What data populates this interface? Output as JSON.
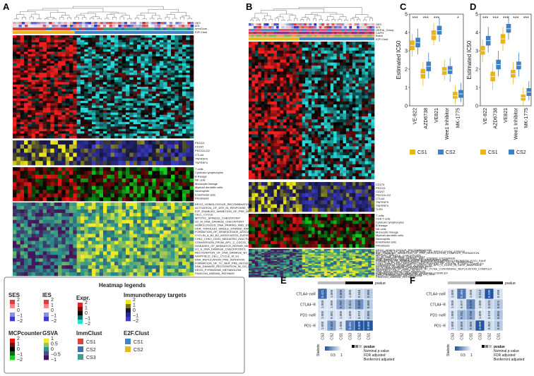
{
  "panels": {
    "A": {
      "label": "A",
      "track_labels": [
        "SES",
        "IES",
        "ImmClust",
        "E2F.Clust"
      ],
      "immune_genes": [
        "PDCD1",
        "CD247",
        "PDCD1LG2",
        "CTLA4",
        "TNFRSF9",
        "TNFRSF4"
      ],
      "mcp_cells": [
        "T cells",
        "Cytotoxic lymphocytes",
        "B lineage",
        "NK cells",
        "Monocytic lineage",
        "Myeloid dendritic cells",
        "Neutrophils",
        "Endothelial cells",
        "Fibroblasts"
      ],
      "pathways": [
        "KEGG_HOMOLOGOUS_RECOMBINATION",
        "ACTIVATION_OF_ATR_IN_RESPONSE_TO_REPLICATION_STRESS",
        "E2F_ENABLED_INHIBITION_OF_PRE_REPLICATION_COMPLEX_FORMATION",
        "CELL_CYCLE",
        "MITOTIC_SPINDLE_CHECKPOINT",
        "G2_M_DNA_DAMAGE_CHECKPOINT",
        "HOMOLOGOUS_DNA_PAIRING_AND_STRAND_EXCHANGE",
        "HDR_THROUGH_SINGLE_STRAND_ANNEALING_SSA",
        "FORMATION_OF_SENESCENCE_ASSOCIATED_HETEROCHROMATIN_FOCI_SAHF",
        "CYCLIN_A_B1_B2_ASSOCIATED_EVENTS_DURING_G2_M_TRANSITION",
        "CHK1_CHK2_CDS1_MEDIATED_INACTIVATION_OF_CYCLIN_B_CDK1_COMPLEX",
        "CONVERSION_FROM_APC_C_CDC20_TO_APC_C_CDH1_IN_LATE_ANAPHASE",
        "DISEASES_OF_MISMATCH_REPAIR_MMR",
        "G1_S_DNA_DAMAGE_CHECKPOINTS",
        "RECOGNITION_OF_DNA_DAMAGE_BY_PCNA_CONTAINING_REPLICATION_COMPLEX",
        "WHITFIELD_CELL_CYCLE_M_G1",
        "DNA_REPLICATION_PRE_INITIATION",
        "FORMATION_OF_TC_NER_PRE_INCISION_COMPLEX",
        "DNA_DAMAGE_RECOGNITION_IN_GG_NER",
        "KEGG_PYRIMIDINE_METABOLISM",
        "FANCONI_ANEMIA_PATHWAY"
      ]
    },
    "B": {
      "label": "B",
      "track_labels": [
        "SES",
        "IES",
        "GEPIA_Group",
        "CAPN",
        "Batch",
        "E2F.Clust"
      ],
      "immune_genes": [
        "CD274",
        "PDCD1",
        "CD247",
        "PDCD1LG2",
        "CTLA4",
        "TNFRSF9",
        "TNFRSF4",
        "TLR9"
      ],
      "mcp_cells": [
        "T cells",
        "CD8 T cells",
        "Cytotoxic lymphocytes",
        "B lineage",
        "NK cells",
        "Monocytic lineage",
        "Myeloid dendritic cells",
        "Neutrophils",
        "Endothelial cells",
        "Fibroblasts"
      ],
      "pathways": [
        "KEGG_HOMOLOGOUS_RECOMBINATION",
        "ACTIVATION_OF_ATR_IN_RESPONSE_TO_REPLICATION_STRESS",
        "E2F_ENABLED_INHIBITION_OF_PRE_REPLICATION_COMPLEX_FORMATION",
        "CELL_CYCLE",
        "MITOTIC_SPINDLE_CHECKPOINT",
        "G2_M_DNA_DAMAGE_CHECKPOINT",
        "HOMOLOGOUS_DNA_PAIRING_AND_STRAND_EXCHANGE",
        "HDR_THROUGH_SINGLE_STRAND_ANNEALING_SSA",
        "FORMATION_OF_SENESCENCE_ASSOCIATED_HETEROCHROMATIN_FOCI_SAHF",
        "CYCLIN_A_B1_B2_ASSOCIATED_EVENTS_DURING_G2_M_TRANSITION",
        "CHK1_CHK2_CDS1_MEDIATED_INACTIVATION_OF_CYCLIN_B_CDK1_COMPLEX",
        "CONVERSION_FROM_APC_C_CDC20_TO_APC_C_CDH1_IN_LATE_ANAPHASE",
        "DISEASES_OF_MISMATCH_REPAIR_MMR",
        "G1_S_DNA_DAMAGE_CHECKPOINTS",
        "RECOGNITION_OF_DNA_DAMAGE_BY_PCNA_CONTAINING_REPLICATION_COMPLEX",
        "WHITFIELD_CELL_CYCLE_M_G1",
        "DNA_REPLICATION_PRE_INITIATION",
        "FORMATION_OF_TC_NER_PRE_INCISION_COMPLEX",
        "DNA_DAMAGE_RECOGNITION_IN_GG_NER",
        "KEGG_PYRIMIDINE_METABOLISM",
        "FANCONI_ANEMIA_PATHWAY"
      ]
    },
    "C": {
      "label": "C"
    },
    "D": {
      "label": "D"
    },
    "E": {
      "label": "E"
    },
    "F": {
      "label": "F"
    }
  },
  "legend": {
    "title": "Heatmap legends",
    "ses": {
      "name": "SES",
      "ticks": [
        "2",
        "1",
        "0",
        "−1",
        "−2"
      ]
    },
    "ies": {
      "name": "IES",
      "ticks": [
        "2",
        "1",
        "0",
        "−1",
        "−2"
      ]
    },
    "expr": {
      "name": "Expr.",
      "ticks": [
        "2",
        "1",
        "0",
        "−1",
        "−2"
      ]
    },
    "immuno": {
      "name": "Immunotherapy targets",
      "ticks": [
        "2",
        "1",
        "0",
        "−1",
        "−2"
      ]
    },
    "mcp": {
      "name": "MCPcounter",
      "ticks": [
        "2",
        "1",
        "0",
        "−1",
        "−2"
      ]
    },
    "gsva": {
      "name": "GSVA",
      "ticks": [
        "1",
        "0.5",
        "0",
        "−0.5",
        "−1"
      ]
    },
    "immclust": {
      "name": "ImmClust",
      "items": [
        "CS1",
        "CS2",
        "CS3"
      ],
      "colors": [
        "#d6443a",
        "#3d6fb6",
        "#3aa38f"
      ]
    },
    "e2fclust": {
      "name": "E2F.Clust",
      "items": [
        "CS1",
        "CS2"
      ],
      "colors": [
        "#3e84c6",
        "#e9b720"
      ]
    }
  },
  "chart_data": [
    {
      "id": "C",
      "type": "box",
      "ylabel": "Estimated IC50",
      "ylim": [
        0,
        5
      ],
      "yticks": [
        "0",
        "1",
        "2",
        "3",
        "4",
        "5"
      ],
      "categories": [
        "VE-822",
        "AZD6738",
        "VE821",
        "Wee1 Inhibitor",
        "MK-1775"
      ],
      "significance": [
        "***",
        "***",
        "***",
        "",
        "*"
      ],
      "series": [
        {
          "name": "CS1",
          "color": "#e8b51f",
          "stats": [
            [
              2.7,
              3.05,
              3.3,
              3.55,
              3.9
            ],
            [
              1.1,
              1.5,
              1.75,
              2.0,
              2.4
            ],
            [
              3.3,
              3.6,
              3.85,
              4.1,
              4.5
            ],
            [
              1.4,
              1.7,
              1.9,
              2.1,
              2.5
            ],
            [
              0.1,
              0.4,
              0.55,
              0.75,
              1.1
            ]
          ]
        },
        {
          "name": "CS2",
          "color": "#3f7fc2",
          "stats": [
            [
              2.8,
              3.2,
              3.45,
              3.7,
              4.2
            ],
            [
              1.5,
              1.9,
              2.15,
              2.4,
              2.9
            ],
            [
              3.5,
              3.9,
              4.1,
              4.35,
              4.8
            ],
            [
              1.3,
              1.75,
              1.95,
              2.15,
              2.6
            ],
            [
              0.2,
              0.45,
              0.65,
              0.85,
              1.25
            ]
          ]
        }
      ],
      "legend": [
        "CS1",
        "CS2"
      ]
    },
    {
      "id": "D",
      "type": "box",
      "ylabel": "Estimated IC50",
      "ylim": [
        0,
        5
      ],
      "yticks": [
        "0",
        "1",
        "2",
        "3",
        "4",
        "5"
      ],
      "categories": [
        "VE-822",
        "AZD6738",
        "VE821",
        "Wee1 Inhibitor",
        "MK-1775"
      ],
      "significance": [
        "***",
        "***",
        "***",
        "***",
        "***"
      ],
      "series": [
        {
          "name": "CS1",
          "color": "#e8b51f",
          "stats": [
            [
              2.4,
              2.8,
              3.0,
              3.25,
              3.6
            ],
            [
              0.9,
              1.35,
              1.6,
              1.85,
              2.3
            ],
            [
              3.0,
              3.4,
              3.65,
              3.9,
              4.3
            ],
            [
              1.2,
              1.55,
              1.75,
              1.95,
              2.4
            ],
            [
              0.0,
              0.3,
              0.45,
              0.6,
              1.0
            ]
          ]
        },
        {
          "name": "CS2",
          "color": "#3f7fc2",
          "stats": [
            [
              2.9,
              3.3,
              3.55,
              3.8,
              4.3
            ],
            [
              1.6,
              2.0,
              2.25,
              2.5,
              3.0
            ],
            [
              3.6,
              4.0,
              4.2,
              4.45,
              4.9
            ],
            [
              1.6,
              2.0,
              2.2,
              2.4,
              2.9
            ],
            [
              0.3,
              0.55,
              0.75,
              0.95,
              1.35
            ]
          ]
        }
      ],
      "legend": [
        "CS1",
        "CS2"
      ]
    },
    {
      "id": "E",
      "type": "heatmap",
      "title": "pvalue",
      "rows": [
        "CTLA4−noR",
        "CTLA4−R",
        "PD1−noR",
        "PD1−R"
      ],
      "cols": [
        "CS3",
        "CS2",
        "CS1",
        "CS3",
        "CS2",
        "CS1"
      ],
      "values": [
        [
          "0.421",
          "1.000",
          "0.806",
          "1.000",
          "0.946",
          "0.880"
        ],
        [
          "1.000",
          "1.000",
          "0.707",
          "0.824",
          "0.609",
          "0.880"
        ],
        [
          "1.000",
          "0.981",
          "1.000",
          "1.000",
          "0.973",
          "0.880"
        ],
        [
          "1.000",
          "0.683",
          "1.000",
          "0.491",
          "0.009",
          "0.096"
        ]
      ],
      "legend_labels": [
        "Statistic",
        "0.5",
        "1",
        "pvalue",
        "Nominal p value",
        "FDR adjusted",
        "Bonferroni adjusted"
      ]
    },
    {
      "id": "F",
      "type": "heatmap",
      "title": "pvalue",
      "rows": [
        "CTLA4−noR",
        "CTLA4−R",
        "PD1−noR",
        "PD1−R"
      ],
      "cols": [
        "CS3",
        "CS2",
        "CS1",
        "CS3",
        "CS2",
        "CS1"
      ],
      "values": [
        [
          "1.000",
          "0.484",
          "1.000",
          "0.913",
          "0.235",
          "0.998"
        ],
        [
          "1.000",
          "0.977",
          "0.576",
          "1.000",
          "0.929",
          "0.871"
        ],
        [
          "1.000",
          "0.781",
          "0.706",
          "1.000",
          "0.978",
          "0.856"
        ],
        [
          "1.000",
          "0.899",
          "0.880",
          "0.009",
          "0.962",
          "0.890"
        ]
      ],
      "legend_labels": [
        "Statistic",
        "0.5",
        "1",
        "pvalue",
        "Nominal p value",
        "FDR adjusted",
        "Bonferroni adjusted"
      ]
    }
  ]
}
